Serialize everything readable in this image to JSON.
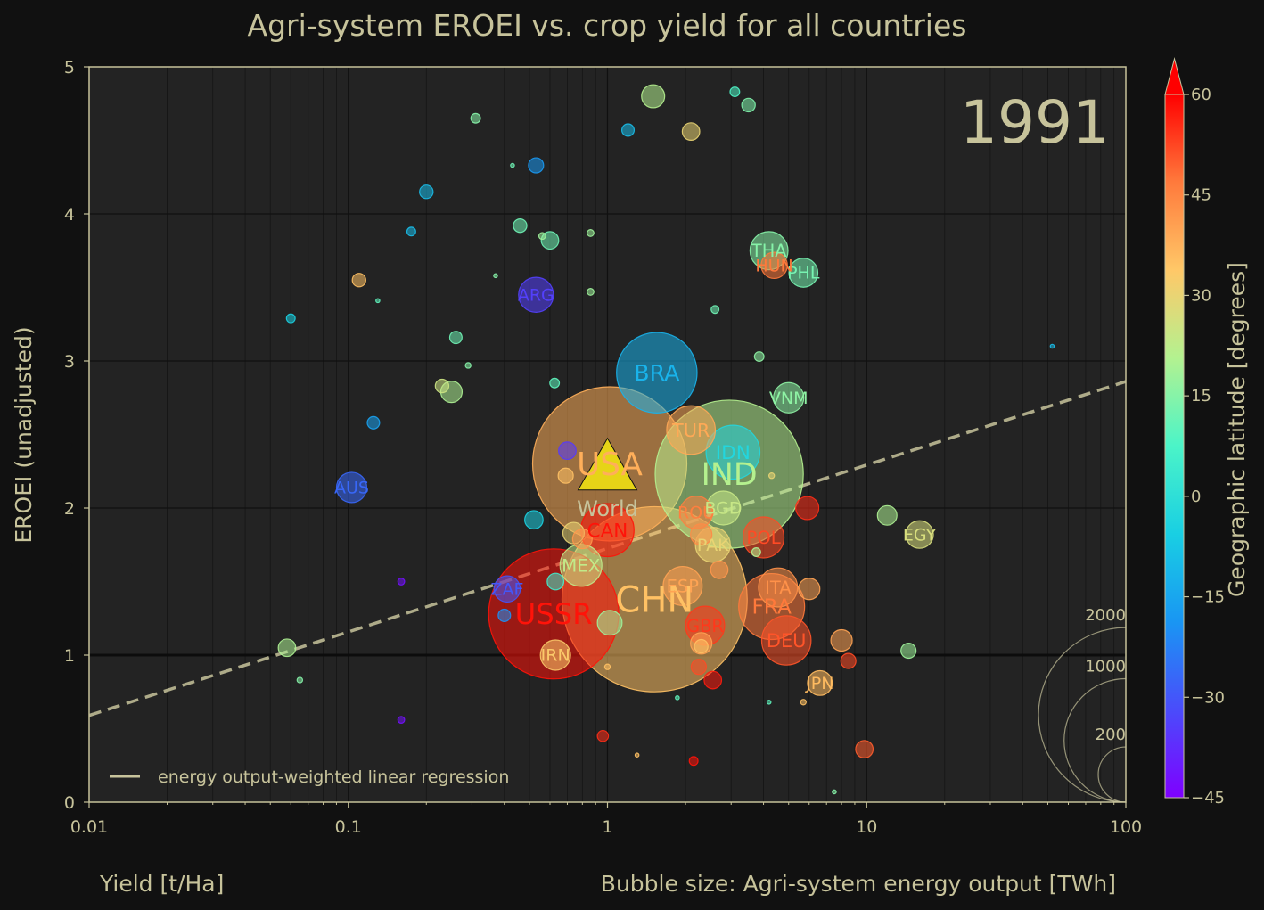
{
  "chart_data": {
    "type": "scatter",
    "title": "Agri-system EROEI vs. crop yield for all countries",
    "year": "1991",
    "xlabel": "Yield [t/Ha]",
    "ylabel": "EROEI (unadjusted)",
    "size_label": "Bubble size: Agri-system energy output [TWh]",
    "colorbar_label": "Geographic latitude [degrees]",
    "xscale": "log",
    "xlim": [
      0.01,
      100
    ],
    "ylim": [
      0,
      5
    ],
    "x_ticks": [
      "0.01",
      "0.1",
      "1",
      "10",
      "100"
    ],
    "y_ticks": [
      "0",
      "1",
      "2",
      "3",
      "4",
      "5"
    ],
    "colorbar_ticks": [
      "60",
      "45",
      "30",
      "15",
      "0",
      "−15",
      "−30",
      "−45"
    ],
    "colorbar_range": [
      -45,
      60
    ],
    "size_legend": [
      "2000",
      "1000",
      "200"
    ],
    "legend": "energy output-weighted linear regression",
    "regression": {
      "y_at_0.01": 0.59,
      "y_at_100": 2.86
    },
    "reference_line_y": 1,
    "world_marker": {
      "label": "World",
      "x": 1.0,
      "y": 2.28
    },
    "points": [
      {
        "label": "USA",
        "x": 1.02,
        "y": 2.3,
        "lat": 38,
        "e": 1560
      },
      {
        "label": "CHN",
        "x": 1.52,
        "y": 1.38,
        "lat": 35,
        "e": 2250
      },
      {
        "label": "IND",
        "x": 2.95,
        "y": 2.23,
        "lat": 21,
        "e": 1440
      },
      {
        "label": "USSR",
        "x": 0.62,
        "y": 1.28,
        "lat": 58,
        "e": 1110
      },
      {
        "label": "BRA",
        "x": 1.55,
        "y": 2.92,
        "lat": -12,
        "e": 425
      },
      {
        "label": "IDN",
        "x": 3.05,
        "y": 2.38,
        "lat": -3,
        "e": 190
      },
      {
        "label": "CAN",
        "x": 1.0,
        "y": 1.85,
        "lat": 58,
        "e": 185
      },
      {
        "label": "FRA",
        "x": 4.3,
        "y": 1.33,
        "lat": 47,
        "e": 285
      },
      {
        "label": "DEU",
        "x": 4.9,
        "y": 1.1,
        "lat": 51,
        "e": 160
      },
      {
        "label": "TUR",
        "x": 2.1,
        "y": 2.53,
        "lat": 39,
        "e": 155
      },
      {
        "label": "ITA",
        "x": 4.55,
        "y": 1.46,
        "lat": 43,
        "e": 100
      },
      {
        "label": "ESP",
        "x": 1.95,
        "y": 1.47,
        "lat": 40,
        "e": 100
      },
      {
        "label": "MEX",
        "x": 0.79,
        "y": 1.61,
        "lat": 23,
        "e": 115
      },
      {
        "label": "POL",
        "x": 4.0,
        "y": 1.8,
        "lat": 52,
        "e": 110
      },
      {
        "label": "GBR",
        "x": 2.38,
        "y": 1.2,
        "lat": 54,
        "e": 100
      },
      {
        "label": "THA",
        "x": 4.2,
        "y": 3.75,
        "lat": 15,
        "e": 95
      },
      {
        "label": "ROU",
        "x": 2.2,
        "y": 1.97,
        "lat": 46,
        "e": 70
      },
      {
        "label": "BGD",
        "x": 2.8,
        "y": 2.0,
        "lat": 24,
        "e": 75
      },
      {
        "label": "PAK",
        "x": 2.55,
        "y": 1.75,
        "lat": 30,
        "e": 80
      },
      {
        "label": "ARG",
        "x": 0.53,
        "y": 3.45,
        "lat": -34,
        "e": 80
      },
      {
        "label": "AUS",
        "x": 0.103,
        "y": 2.14,
        "lat": -27,
        "e": 60
      },
      {
        "label": "IRN",
        "x": 0.63,
        "y": 1.0,
        "lat": 33,
        "e": 60
      },
      {
        "label": "EGY",
        "x": 16,
        "y": 1.82,
        "lat": 27,
        "e": 50
      },
      {
        "label": "JPN",
        "x": 6.6,
        "y": 0.81,
        "lat": 36,
        "e": 40
      },
      {
        "label": "VNM",
        "x": 5.0,
        "y": 2.75,
        "lat": 16,
        "e": 60
      },
      {
        "label": "PHL",
        "x": 5.7,
        "y": 3.6,
        "lat": 13,
        "e": 55
      },
      {
        "label": "HUN",
        "x": 4.4,
        "y": 3.65,
        "lat": 47,
        "e": 45
      },
      {
        "label": "ZAF",
        "x": 0.41,
        "y": 1.45,
        "lat": -30,
        "e": 45
      },
      {
        "label": "",
        "x": 1.5,
        "y": 4.8,
        "lat": 21,
        "e": 35
      },
      {
        "label": "",
        "x": 5.9,
        "y": 2.0,
        "lat": 55,
        "e": 35
      },
      {
        "label": "",
        "x": 12,
        "y": 1.95,
        "lat": 20,
        "e": 25
      },
      {
        "label": "",
        "x": 0.52,
        "y": 1.92,
        "lat": -5,
        "e": 22
      },
      {
        "label": "",
        "x": 0.25,
        "y": 2.79,
        "lat": 20,
        "e": 30
      },
      {
        "label": "",
        "x": 1.02,
        "y": 1.22,
        "lat": 18,
        "e": 40
      },
      {
        "label": "",
        "x": 6.0,
        "y": 1.45,
        "lat": 40,
        "e": 30
      },
      {
        "label": "",
        "x": 8.0,
        "y": 1.1,
        "lat": 40,
        "e": 30
      },
      {
        "label": "",
        "x": 2.7,
        "y": 1.58,
        "lat": 42,
        "e": 20
      },
      {
        "label": "",
        "x": 2.3,
        "y": 1.82,
        "lat": 44,
        "e": 30
      },
      {
        "label": "",
        "x": 0.74,
        "y": 1.83,
        "lat": 30,
        "e": 30
      },
      {
        "label": "",
        "x": 0.8,
        "y": 1.79,
        "lat": 42,
        "e": 25
      },
      {
        "label": "",
        "x": 2.55,
        "y": 0.83,
        "lat": 57,
        "e": 20
      },
      {
        "label": "",
        "x": 8.5,
        "y": 0.96,
        "lat": 52,
        "e": 15
      },
      {
        "label": "",
        "x": 9.8,
        "y": 0.36,
        "lat": 50,
        "e": 20
      },
      {
        "label": "",
        "x": 2.25,
        "y": 0.92,
        "lat": 52,
        "e": 15
      },
      {
        "label": "",
        "x": 2.3,
        "y": 1.08,
        "lat": 40,
        "e": 30
      },
      {
        "label": "",
        "x": 2.1,
        "y": 4.56,
        "lat": 30,
        "e": 20
      },
      {
        "label": "",
        "x": 0.6,
        "y": 3.82,
        "lat": 12,
        "e": 20
      },
      {
        "label": "",
        "x": 0.7,
        "y": 2.39,
        "lat": -35,
        "e": 20
      },
      {
        "label": "",
        "x": 0.69,
        "y": 2.22,
        "lat": 35,
        "e": 15
      },
      {
        "label": "",
        "x": 0.53,
        "y": 4.33,
        "lat": -18,
        "e": 15
      },
      {
        "label": "",
        "x": 3.5,
        "y": 4.74,
        "lat": 14,
        "e": 12
      },
      {
        "label": "",
        "x": 0.11,
        "y": 3.55,
        "lat": 35,
        "e": 12
      },
      {
        "label": "",
        "x": 0.2,
        "y": 4.15,
        "lat": -10,
        "e": 12
      },
      {
        "label": "",
        "x": 0.125,
        "y": 2.58,
        "lat": -16,
        "e": 10
      },
      {
        "label": "",
        "x": 1.2,
        "y": 4.57,
        "lat": -10,
        "e": 10
      },
      {
        "label": "",
        "x": 0.46,
        "y": 3.92,
        "lat": 12,
        "e": 12
      },
      {
        "label": "",
        "x": 0.058,
        "y": 1.05,
        "lat": 20,
        "e": 20
      },
      {
        "label": "",
        "x": 14.5,
        "y": 1.03,
        "lat": 18,
        "e": 15
      },
      {
        "label": "",
        "x": 0.26,
        "y": 3.16,
        "lat": 12,
        "e": 10
      },
      {
        "label": "",
        "x": 0.63,
        "y": 1.5,
        "lat": 5,
        "e": 18
      },
      {
        "label": "",
        "x": 0.4,
        "y": 1.27,
        "lat": -20,
        "e": 10
      },
      {
        "label": "",
        "x": 2.3,
        "y": 1.06,
        "lat": 35,
        "e": 12
      },
      {
        "label": "",
        "x": 3.1,
        "y": 4.83,
        "lat": 8,
        "e": 6
      },
      {
        "label": "",
        "x": 0.06,
        "y": 3.29,
        "lat": -5,
        "e": 5
      },
      {
        "label": "",
        "x": 0.31,
        "y": 4.65,
        "lat": 15,
        "e": 6
      },
      {
        "label": "",
        "x": 3.85,
        "y": 3.03,
        "lat": 16,
        "e": 6
      },
      {
        "label": "",
        "x": 0.625,
        "y": 2.85,
        "lat": 10,
        "e": 6
      },
      {
        "label": "",
        "x": 0.96,
        "y": 0.45,
        "lat": 55,
        "e": 8
      },
      {
        "label": "",
        "x": 2.15,
        "y": 0.28,
        "lat": 58,
        "e": 5
      },
      {
        "label": "",
        "x": 0.175,
        "y": 3.88,
        "lat": -10,
        "e": 5
      },
      {
        "label": "",
        "x": 2.6,
        "y": 3.35,
        "lat": 12,
        "e": 4
      },
      {
        "label": "",
        "x": 0.23,
        "y": 2.83,
        "lat": 25,
        "e": 12
      },
      {
        "label": "",
        "x": 3.75,
        "y": 1.7,
        "lat": 20,
        "e": 5
      },
      {
        "label": "",
        "x": 0.16,
        "y": 1.5,
        "lat": -42,
        "e": 3
      },
      {
        "label": "",
        "x": 0.16,
        "y": 0.56,
        "lat": -42,
        "e": 3
      },
      {
        "label": "",
        "x": 0.56,
        "y": 3.85,
        "lat": 18,
        "e": 3
      },
      {
        "label": "",
        "x": 0.86,
        "y": 3.87,
        "lat": 18,
        "e": 3
      },
      {
        "label": "",
        "x": 0.86,
        "y": 3.47,
        "lat": 18,
        "e": 3
      },
      {
        "label": "",
        "x": 0.065,
        "y": 0.83,
        "lat": 15,
        "e": 2
      },
      {
        "label": "",
        "x": 0.29,
        "y": 2.97,
        "lat": 15,
        "e": 2
      },
      {
        "label": "",
        "x": 0.43,
        "y": 4.33,
        "lat": 12,
        "e": 1
      },
      {
        "label": "",
        "x": 1.0,
        "y": 0.92,
        "lat": 35,
        "e": 2
      },
      {
        "label": "",
        "x": 5.7,
        "y": 0.68,
        "lat": 35,
        "e": 2
      },
      {
        "label": "",
        "x": 7.5,
        "y": 0.07,
        "lat": 15,
        "e": 1
      },
      {
        "label": "",
        "x": 52,
        "y": 3.1,
        "lat": -10,
        "e": 1
      },
      {
        "label": "",
        "x": 0.13,
        "y": 3.41,
        "lat": 10,
        "e": 1
      },
      {
        "label": "",
        "x": 0.37,
        "y": 3.58,
        "lat": 15,
        "e": 1
      },
      {
        "label": "",
        "x": 1.86,
        "y": 0.71,
        "lat": 10,
        "e": 1
      },
      {
        "label": "",
        "x": 4.2,
        "y": 0.68,
        "lat": 10,
        "e": 1
      },
      {
        "label": "",
        "x": 4.3,
        "y": 2.22,
        "lat": 30,
        "e": 2
      },
      {
        "label": "",
        "x": 1.3,
        "y": 0.32,
        "lat": 35,
        "e": 1
      }
    ]
  }
}
